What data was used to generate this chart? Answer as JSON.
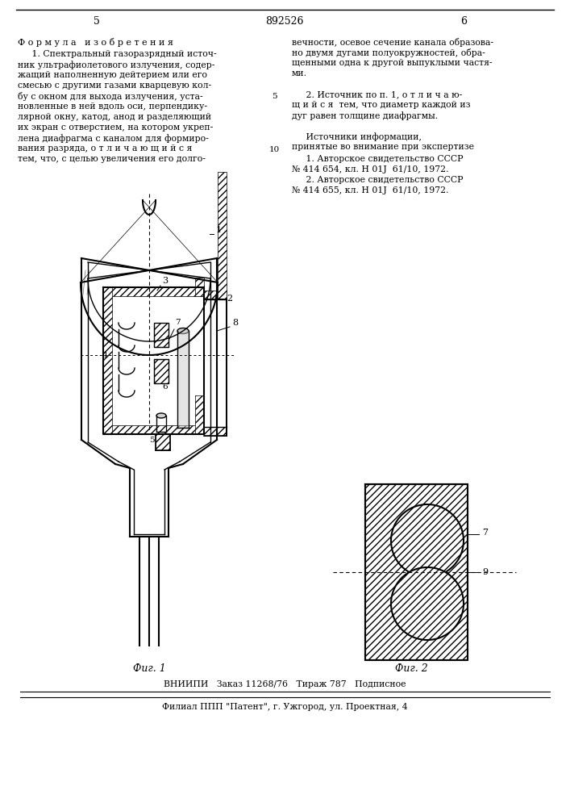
{
  "page_number_left": "5",
  "page_number_center": "892526",
  "page_number_right": "6",
  "formula_title": "Ф о р м у л а   и з о б р е т е н и я",
  "left_col_text": [
    "     1. Спектральный газоразрядный источ-",
    "ник ультрафиолетового излучения, содер-",
    "жащий наполненную дейтерием или его",
    "смесью с другими газами кварцевую кол-",
    "бу с окном для выхода излучения, уста-",
    "новленные в ней вдоль оси, перпендику-",
    "лярной окну, катод, анод и разделяющий",
    "их экран с отверстием, на котором укреп-",
    "лена диафрагма с каналом для формиро-",
    "вания разряда, о т л и ч а ю щ и й с я",
    "тем, что, с целью увеличения его долго-"
  ],
  "right_col_text_lines": [
    "вечности, осевое сечение канала образова-",
    "но двумя дугами полуокружностей, обра-",
    "щенными одна к другой выпуклыми частя-",
    "ми.",
    "",
    "     2. Источник по п. 1, о т л и ч а ю-",
    "щ и й с я  тем, что диаметр каждой из",
    "дуг равен толщине диафрагмы.",
    "",
    "     Источники информации,",
    "принятые во внимание при экспертизе"
  ],
  "right_col_refs": [
    "     1. Авторское свидетельство СССР",
    "№ 414 654, кл. Н 01J  61/10, 1972.",
    "     2. Авторское свидетельство СССР",
    "№ 414 655, кл. Н 01J  61/10, 1972."
  ],
  "fig1_caption": "Фиг. 1",
  "fig2_caption": "Фиг. 2",
  "footer_line1": "ВНИИПИ   Заказ 11268/76   Тираж 787   Подписное",
  "footer_line2": "Филиал ППП \"Патент\", г. Ужгород, ул. Проектная, 4",
  "bg_color": "#ffffff",
  "text_color": "#000000",
  "line_color": "#000000"
}
